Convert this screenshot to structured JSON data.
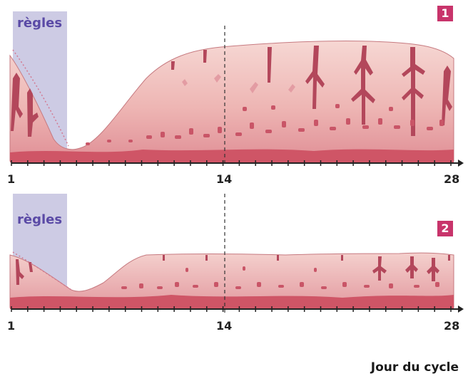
{
  "colors": {
    "menstruation_band": "#cdcbe4",
    "tissue_light": "#f1c4c4",
    "tissue_mid": "#e29a9e",
    "tissue_deep": "#cf5566",
    "gland": "#b3475b",
    "badge": "#c8346b",
    "label_purple": "#5a4aa6"
  },
  "panels": [
    {
      "badge": "1",
      "menses_label": "règles",
      "axis": {
        "start": "1",
        "mid": "14",
        "end": "28"
      }
    },
    {
      "badge": "2",
      "menses_label": "règles",
      "axis": {
        "start": "1",
        "mid": "14",
        "end": "28"
      }
    }
  ],
  "axis_title": "Jour du cycle"
}
